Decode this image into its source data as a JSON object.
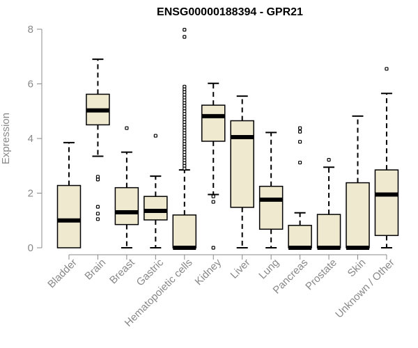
{
  "chart_data": {
    "type": "boxplot",
    "title": "ENSG00000188394 - GPR21",
    "xlabel": "",
    "ylabel": "Expression",
    "ylim": [
      0,
      8
    ],
    "yticks": [
      "0",
      "2",
      "4",
      "6",
      "8"
    ],
    "grid": false,
    "colors": {
      "box_fill": "#efe9d0",
      "stroke": "#000000",
      "axis": "#888888"
    },
    "categories": [
      "Bladder",
      "Brain",
      "Breast",
      "Gastric",
      "Hematopoietic cells",
      "Kidney",
      "Liver",
      "Lung",
      "Pancreas",
      "Prostate",
      "Skin",
      "Unknown / Other"
    ],
    "boxes": [
      {
        "q1": 0.0,
        "median": 1.0,
        "q3": 2.28,
        "whisker_low": 0.0,
        "whisker_high": 3.85,
        "outliers": []
      },
      {
        "q1": 4.5,
        "median": 5.03,
        "q3": 5.62,
        "whisker_low": 3.35,
        "whisker_high": 6.9,
        "outliers": [
          2.6,
          2.5,
          1.5,
          1.25,
          1.05
        ]
      },
      {
        "q1": 0.85,
        "median": 1.3,
        "q3": 2.2,
        "whisker_low": 0.0,
        "whisker_high": 3.5,
        "outliers": [
          4.38
        ]
      },
      {
        "q1": 1.02,
        "median": 1.35,
        "q3": 1.88,
        "whisker_low": 0.0,
        "whisker_high": 2.62,
        "outliers": [
          4.1
        ]
      },
      {
        "q1": 0.0,
        "median": 0.0,
        "q3": 1.2,
        "whisker_low": 0.0,
        "whisker_high": 2.85,
        "outliers": [
          7.98,
          7.72,
          5.9,
          5.8,
          5.7,
          5.6,
          5.5,
          5.4,
          5.3,
          5.2,
          5.1,
          5.0,
          4.9,
          4.8,
          4.7,
          4.6,
          4.5,
          4.4,
          4.3,
          4.2,
          4.1,
          4.0,
          3.9,
          3.8,
          3.7,
          3.6,
          3.5,
          3.4,
          3.3,
          3.2,
          3.1,
          3.0,
          2.9
        ]
      },
      {
        "q1": 3.9,
        "median": 4.82,
        "q3": 5.22,
        "whisker_low": 1.95,
        "whisker_high": 6.02,
        "outliers": [
          1.88,
          1.68,
          0.0
        ]
      },
      {
        "q1": 1.48,
        "median": 4.05,
        "q3": 4.65,
        "whisker_low": 0.0,
        "whisker_high": 5.55,
        "outliers": []
      },
      {
        "q1": 0.68,
        "median": 1.76,
        "q3": 2.25,
        "whisker_low": 0.0,
        "whisker_high": 4.22,
        "outliers": []
      },
      {
        "q1": 0.0,
        "median": 0.0,
        "q3": 0.82,
        "whisker_low": 0.0,
        "whisker_high": 1.28,
        "outliers": [
          4.38,
          4.25,
          3.88,
          3.12
        ]
      },
      {
        "q1": 0.0,
        "median": 0.0,
        "q3": 1.22,
        "whisker_low": 0.0,
        "whisker_high": 2.95,
        "outliers": [
          3.22
        ]
      },
      {
        "q1": 0.0,
        "median": 0.0,
        "q3": 2.38,
        "whisker_low": 0.0,
        "whisker_high": 4.82,
        "outliers": []
      },
      {
        "q1": 0.45,
        "median": 1.95,
        "q3": 2.85,
        "whisker_low": 0.0,
        "whisker_high": 5.65,
        "outliers": [
          6.55
        ]
      }
    ]
  }
}
